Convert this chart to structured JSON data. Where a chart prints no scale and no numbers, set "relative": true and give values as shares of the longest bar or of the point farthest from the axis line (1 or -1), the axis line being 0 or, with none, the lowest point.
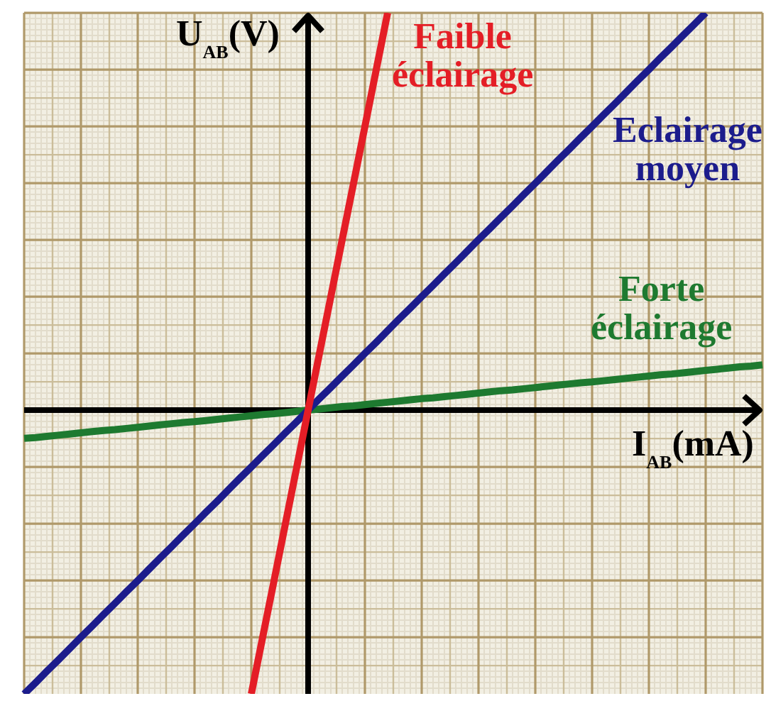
{
  "chart_data": {
    "type": "line",
    "xlabel": "I$_{AB}$(mA)",
    "ylabel": "U$_{AB}$(V)",
    "relative": true,
    "grid": true,
    "marker": "none",
    "categories": [
      null,
      null,
      null,
      null,
      null,
      null,
      null,
      null,
      null,
      null,
      null,
      null,
      null,
      null,
      null,
      null,
      null,
      null,
      null,
      null,
      null,
      null,
      null,
      null,
      null,
      null,
      null,
      null,
      null,
      null,
      null,
      null,
      null,
      null,
      null,
      null,
      null,
      null,
      null,
      null,
      null,
      null,
      null,
      null,
      null,
      null,
      null,
      null,
      null,
      null,
      null,
      null,
      null,
      null,
      null,
      null,
      null,
      null,
      null,
      null,
      null,
      null,
      null,
      null,
      null,
      null
    ],
    "series": [
      {
        "name": "Faible éclairage",
        "color": "#e41e26",
        "values": [
          null,
          null,
          null,
          null,
          null,
          null,
          null,
          null,
          null,
          null,
          null,
          null,
          null,
          null,
          null,
          null,
          null,
          null,
          null,
          null,
          -0.714,
          -0.571,
          -0.429,
          -0.286,
          -0.143,
          0,
          0.143,
          0.286,
          0.429,
          0.571,
          0.714,
          0.857,
          1,
          null,
          null,
          null,
          null,
          null,
          null,
          null,
          null,
          null,
          null,
          null,
          null,
          null,
          null,
          null,
          null,
          null,
          null,
          null,
          null,
          null,
          null,
          null,
          null,
          null,
          null,
          null,
          null,
          null,
          null,
          null,
          null,
          null
        ]
      },
      {
        "name": "Eclairage moyen",
        "color": "#1c1c8c",
        "values": [
          -0.714,
          -0.686,
          -0.657,
          -0.629,
          -0.6,
          -0.571,
          -0.543,
          -0.514,
          -0.486,
          -0.457,
          -0.429,
          -0.4,
          -0.371,
          -0.343,
          -0.314,
          -0.286,
          -0.257,
          -0.229,
          -0.2,
          -0.171,
          -0.143,
          -0.114,
          -0.086,
          -0.057,
          -0.029,
          0,
          0.029,
          0.057,
          0.086,
          0.114,
          0.143,
          0.171,
          0.2,
          0.229,
          0.257,
          0.286,
          0.314,
          0.343,
          0.371,
          0.4,
          0.429,
          0.457,
          0.486,
          0.514,
          0.543,
          0.571,
          0.6,
          0.629,
          0.657,
          0.686,
          0.714,
          0.743,
          0.771,
          0.8,
          0.829,
          0.857,
          0.886,
          0.914,
          0.943,
          0.971,
          1,
          null,
          null,
          null,
          null,
          null
        ]
      },
      {
        "name": "Forte éclairage",
        "color": "#1e7a30",
        "values": [
          -0.071,
          -0.069,
          -0.066,
          -0.063,
          -0.06,
          -0.057,
          -0.054,
          -0.051,
          -0.049,
          -0.046,
          -0.043,
          -0.04,
          -0.037,
          -0.034,
          -0.031,
          -0.029,
          -0.026,
          -0.023,
          -0.02,
          -0.017,
          -0.014,
          -0.011,
          -0.009,
          -0.006,
          -0.003,
          0,
          0.003,
          0.006,
          0.009,
          0.011,
          0.014,
          0.017,
          0.02,
          0.023,
          0.026,
          0.029,
          0.031,
          0.034,
          0.037,
          0.04,
          0.043,
          0.046,
          0.049,
          0.051,
          0.054,
          0.057,
          0.06,
          0.063,
          0.066,
          0.069,
          0.071,
          0.074,
          0.077,
          0.08,
          0.083,
          0.086,
          0.089,
          0.091,
          0.094,
          0.097,
          0.1,
          0.103,
          0.106,
          0.109,
          0.111,
          0.114
        ]
      }
    ]
  }
}
